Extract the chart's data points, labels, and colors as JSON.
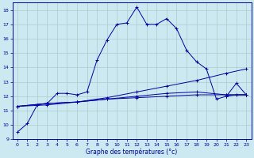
{
  "xlabel": "Graphe des températures (°c)",
  "bg_color": "#cce8f0",
  "grid_color": "#aacccc",
  "line_color": "#0000aa",
  "ylim": [
    9,
    18.5
  ],
  "xlim": [
    -0.5,
    23.5
  ],
  "yticks": [
    9,
    10,
    11,
    12,
    13,
    14,
    15,
    16,
    17,
    18
  ],
  "xticks": [
    0,
    1,
    2,
    3,
    4,
    5,
    6,
    7,
    8,
    9,
    10,
    11,
    12,
    13,
    14,
    15,
    16,
    17,
    18,
    19,
    20,
    21,
    22,
    23
  ],
  "series": [
    {
      "x": [
        0,
        1,
        2,
        3,
        4,
        5,
        6,
        7,
        8,
        9,
        10,
        11,
        12,
        13,
        14,
        15,
        16,
        17,
        18,
        19,
        20,
        21,
        22,
        23
      ],
      "y": [
        9.5,
        10.1,
        11.4,
        11.5,
        12.2,
        12.2,
        12.1,
        12.3,
        14.5,
        15.9,
        17.0,
        17.1,
        18.2,
        17.0,
        17.0,
        17.4,
        16.7,
        15.2,
        14.4,
        13.9,
        11.8,
        12.0,
        12.1,
        12.1
      ]
    },
    {
      "x": [
        0,
        3,
        6,
        9,
        12,
        15,
        18,
        21,
        23
      ],
      "y": [
        11.3,
        11.4,
        11.6,
        11.9,
        12.3,
        12.7,
        13.1,
        13.6,
        13.9
      ]
    },
    {
      "x": [
        0,
        3,
        6,
        9,
        12,
        15,
        18,
        21,
        23
      ],
      "y": [
        11.3,
        11.5,
        11.6,
        11.8,
        12.0,
        12.2,
        12.3,
        12.1,
        12.1
      ]
    },
    {
      "x": [
        0,
        3,
        6,
        9,
        12,
        15,
        18,
        21,
        23
      ],
      "y": [
        11.3,
        11.5,
        11.6,
        11.8,
        11.9,
        12.0,
        12.1,
        12.1,
        12.1
      ]
    },
    {
      "x": [
        21,
        22,
        23
      ],
      "y": [
        12.0,
        12.9,
        12.1
      ]
    }
  ]
}
